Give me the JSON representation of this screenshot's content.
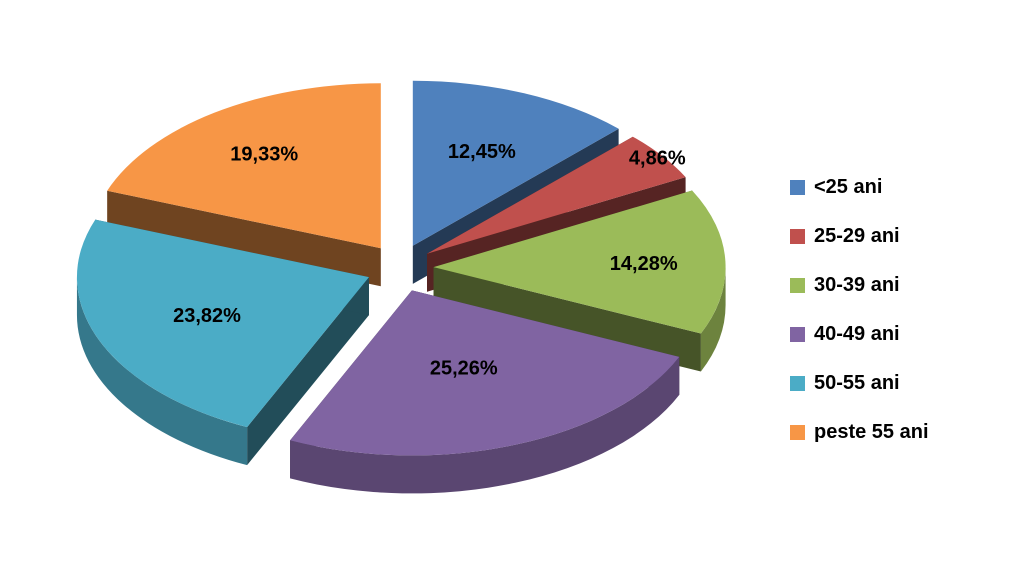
{
  "chart_data": {
    "type": "pie",
    "title": "",
    "categories": [
      "<25 ani",
      "25-29 ani",
      "30-39 ani",
      "40-49 ani",
      "50-55 ani",
      "peste 55 ani"
    ],
    "values": [
      12.45,
      4.86,
      14.28,
      25.26,
      23.82,
      19.33
    ],
    "labels": [
      "12,45%",
      "4,86%",
      "14,28%",
      "25,26%",
      "23,82%",
      "19,33%"
    ],
    "colors": [
      "#4F81BD",
      "#C0504D",
      "#9BBB59",
      "#8064A2",
      "#4BACC6",
      "#F79646"
    ],
    "style": "3d-exploded",
    "legend_position": "right"
  }
}
